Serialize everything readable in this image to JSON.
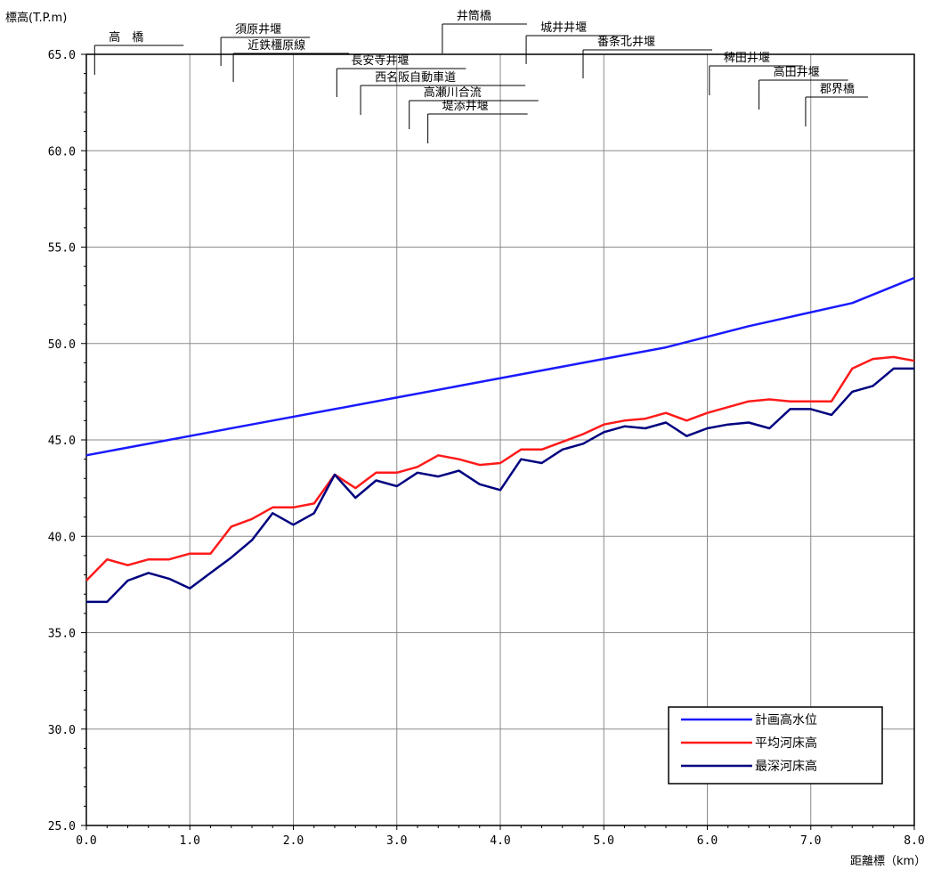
{
  "chart_data": {
    "type": "line",
    "ylabel": "標高(T.P.m)",
    "xlabel": "距離標（km）",
    "xlim": [
      0,
      8
    ],
    "ylim": [
      25,
      65
    ],
    "grid": true,
    "legend_position": "bottom-right",
    "x_ticks": [
      "0.0",
      "1.0",
      "2.0",
      "3.0",
      "4.0",
      "5.0",
      "6.0",
      "7.0",
      "8.0"
    ],
    "y_ticks": [
      "25.0",
      "30.0",
      "35.0",
      "40.0",
      "45.0",
      "50.0",
      "55.0",
      "60.0",
      "65.0"
    ],
    "series": [
      {
        "name": "計画高水位",
        "color": "#1a1aff",
        "x": [
          0,
          1.2,
          1.8,
          2.4,
          3.0,
          3.6,
          4.2,
          4.8,
          5.6,
          6.4,
          7.4,
          8.0
        ],
        "y": [
          44.2,
          45.4,
          46.0,
          46.6,
          47.2,
          47.8,
          48.4,
          49.0,
          49.8,
          50.9,
          52.1,
          53.4
        ]
      },
      {
        "name": "平均河床高",
        "color": "#ff1a1a",
        "x": [
          0,
          0.2,
          0.4,
          0.6,
          0.8,
          1.0,
          1.2,
          1.4,
          1.6,
          1.8,
          2.0,
          2.2,
          2.4,
          2.6,
          2.8,
          3.0,
          3.2,
          3.4,
          3.6,
          3.8,
          4.0,
          4.2,
          4.4,
          4.6,
          4.8,
          5.0,
          5.2,
          5.4,
          5.6,
          5.8,
          6.0,
          6.2,
          6.4,
          6.6,
          6.8,
          7.0,
          7.2,
          7.4,
          7.6,
          7.8,
          8.0
        ],
        "y": [
          37.7,
          38.8,
          38.5,
          38.8,
          38.8,
          39.1,
          39.1,
          40.5,
          40.9,
          41.5,
          41.5,
          41.7,
          43.2,
          42.5,
          43.3,
          43.3,
          43.6,
          44.2,
          44.0,
          43.7,
          43.8,
          44.5,
          44.5,
          44.9,
          45.3,
          45.8,
          46.0,
          46.1,
          46.4,
          46.0,
          46.4,
          46.7,
          47.0,
          47.1,
          47.0,
          47.0,
          47.0,
          48.7,
          49.2,
          49.3,
          49.1
        ]
      },
      {
        "name": "最深河床高",
        "color": "#00007f",
        "x": [
          0,
          0.2,
          0.4,
          0.6,
          0.8,
          1.0,
          1.2,
          1.4,
          1.6,
          1.8,
          2.0,
          2.2,
          2.4,
          2.6,
          2.8,
          3.0,
          3.2,
          3.4,
          3.6,
          3.8,
          4.0,
          4.2,
          4.4,
          4.6,
          4.8,
          5.0,
          5.2,
          5.4,
          5.6,
          5.8,
          6.0,
          6.2,
          6.4,
          6.6,
          6.8,
          7.0,
          7.2,
          7.4,
          7.6,
          7.8,
          8.0
        ],
        "y": [
          36.6,
          36.6,
          37.7,
          38.1,
          37.8,
          37.3,
          38.1,
          38.9,
          39.8,
          41.2,
          40.6,
          41.2,
          43.2,
          42.0,
          42.9,
          42.6,
          43.3,
          43.1,
          43.4,
          42.7,
          42.4,
          44.0,
          43.8,
          44.5,
          44.8,
          45.4,
          45.7,
          45.6,
          45.9,
          45.2,
          45.6,
          45.8,
          45.9,
          45.6,
          46.6,
          46.6,
          46.3,
          47.5,
          47.8,
          48.7,
          48.7
        ]
      }
    ],
    "annotations": [
      {
        "text": "高　橋",
        "x": 0.08
      },
      {
        "text": "須原井堰",
        "x": 1.3
      },
      {
        "text": "近鉄橿原線",
        "x": 1.42
      },
      {
        "text": "長安寺井堰",
        "x": 2.42
      },
      {
        "text": "西名阪自動車道",
        "x": 2.65
      },
      {
        "text": "井筒橋",
        "x": 3.44
      },
      {
        "text": "高瀬川合流",
        "x": 3.12
      },
      {
        "text": "堤添井堰",
        "x": 3.3
      },
      {
        "text": "城井井堰",
        "x": 4.25
      },
      {
        "text": "番条北井堰",
        "x": 4.8
      },
      {
        "text": "稗田井堰",
        "x": 6.02
      },
      {
        "text": "高田井堰",
        "x": 6.5
      },
      {
        "text": "郡界橋",
        "x": 6.95
      }
    ]
  }
}
